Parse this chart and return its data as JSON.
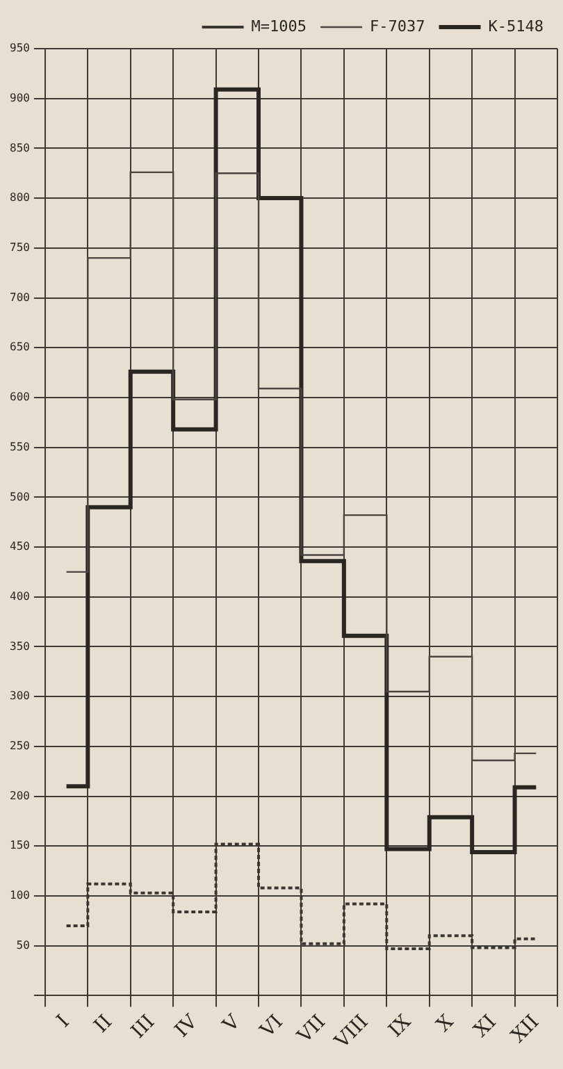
{
  "chart_data": {
    "type": "step",
    "categories": [
      "I",
      "II",
      "III",
      "IV",
      "V",
      "VI",
      "VII",
      "VIII",
      "IX",
      "X",
      "XI",
      "XII"
    ],
    "series": [
      {
        "name": "M=1005",
        "color": "#3a3632",
        "line_style": "dotted",
        "values": [
          70,
          112,
          103,
          84,
          152,
          108,
          52,
          92,
          47,
          60,
          48,
          57
        ]
      },
      {
        "name": "F-7037",
        "color": "#4a4541",
        "line_style": "solid",
        "values": [
          425,
          740,
          826,
          598,
          825,
          609,
          442,
          482,
          305,
          340,
          236,
          243
        ]
      },
      {
        "name": "K-5148",
        "color": "#2a2622",
        "line_style": "solid",
        "values": [
          210,
          490,
          626,
          568,
          909,
          800,
          436,
          361,
          147,
          179,
          144,
          209
        ]
      }
    ],
    "ylim": [
      0,
      950
    ],
    "yticks": [
      {
        "value": 0,
        "label": null
      },
      50,
      100,
      150,
      200,
      250,
      300,
      350,
      400,
      450,
      500,
      550,
      600,
      650,
      700,
      750,
      800,
      850,
      900,
      950
    ],
    "grid": true,
    "legend": "top",
    "marker": "none"
  }
}
